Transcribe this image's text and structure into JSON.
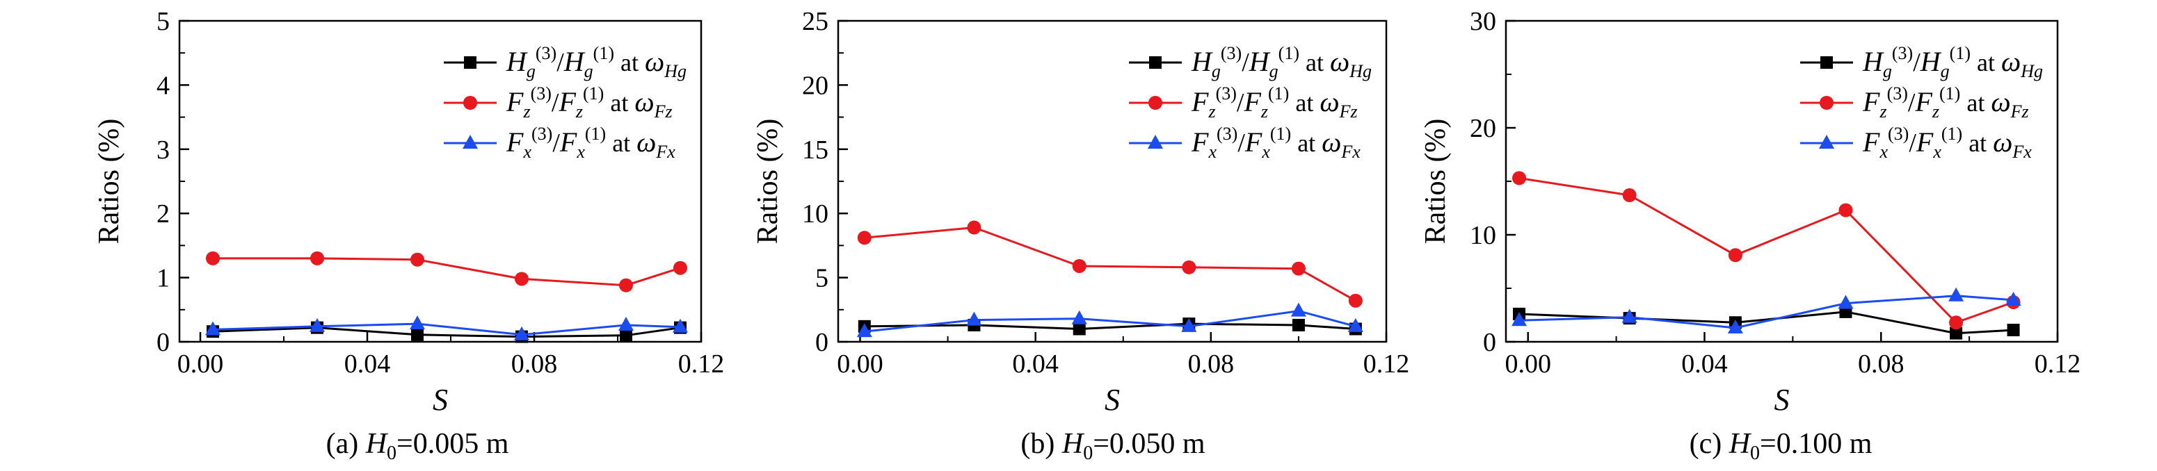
{
  "chart_data": [
    {
      "type": "line",
      "caption": {
        "prefix": "(a) ",
        "sym": "H",
        "sub": "0",
        "value": "=0.005 m"
      },
      "xlabel": "S",
      "ylabel": "Ratios (%)",
      "xlim": [
        -0.005,
        0.12
      ],
      "ylim": [
        0,
        5
      ],
      "xticks": [
        "0.00",
        "0.04",
        "0.08",
        "0.12"
      ],
      "yticks": [
        "0",
        "1",
        "2",
        "3",
        "4",
        "5"
      ],
      "series": [
        {
          "key": "hg",
          "sym": "H",
          "sub": "g",
          "sup3": "(3)",
          "sup1": "(1)",
          "at": " at ",
          "omega": "ω",
          "osub": "Hg",
          "color": "#000000",
          "marker": "square",
          "x": [
            0.003,
            0.028,
            0.052,
            0.077,
            0.102,
            0.115
          ],
          "y": [
            0.16,
            0.22,
            0.11,
            0.08,
            0.1,
            0.22
          ]
        },
        {
          "key": "fz",
          "sym": "F",
          "sub": "z",
          "sup3": "(3)",
          "sup1": "(1)",
          "at": " at ",
          "omega": "ω",
          "osub": "Fz",
          "color": "#e8191e",
          "marker": "circle",
          "x": [
            0.003,
            0.028,
            0.052,
            0.077,
            0.102,
            0.115
          ],
          "y": [
            1.3,
            1.3,
            1.28,
            0.98,
            0.88,
            1.15
          ]
        },
        {
          "key": "fx",
          "sym": "F",
          "sub": "x",
          "sup3": "(3)",
          "sup1": "(1)",
          "at": " at ",
          "omega": "ω",
          "osub": "Fx",
          "color": "#1b4cf2",
          "marker": "triangle",
          "x": [
            0.003,
            0.028,
            0.052,
            0.077,
            0.102,
            0.115
          ],
          "y": [
            0.19,
            0.24,
            0.28,
            0.11,
            0.26,
            0.23
          ]
        }
      ]
    },
    {
      "type": "line",
      "caption": {
        "prefix": "(b) ",
        "sym": "H",
        "sub": "0",
        "value": "=0.050 m"
      },
      "xlabel": "S",
      "ylabel": "Ratios (%)",
      "xlim": [
        -0.005,
        0.12
      ],
      "ylim": [
        0,
        25
      ],
      "xticks": [
        "0.00",
        "0.04",
        "0.08",
        "0.12"
      ],
      "yticks": [
        "0",
        "5",
        "10",
        "15",
        "20",
        "25"
      ],
      "series": [
        {
          "key": "hg",
          "sym": "H",
          "sub": "g",
          "sup3": "(3)",
          "sup1": "(1)",
          "at": " at ",
          "omega": "ω",
          "osub": "Hg",
          "color": "#000000",
          "marker": "square",
          "x": [
            0.001,
            0.026,
            0.05,
            0.075,
            0.1,
            0.113
          ],
          "y": [
            1.2,
            1.3,
            1.0,
            1.4,
            1.3,
            1.0
          ]
        },
        {
          "key": "fz",
          "sym": "F",
          "sub": "z",
          "sup3": "(3)",
          "sup1": "(1)",
          "at": " at ",
          "omega": "ω",
          "osub": "Fz",
          "color": "#e8191e",
          "marker": "circle",
          "x": [
            0.001,
            0.026,
            0.05,
            0.075,
            0.1,
            0.113
          ],
          "y": [
            8.1,
            8.9,
            5.9,
            5.8,
            5.7,
            3.2
          ]
        },
        {
          "key": "fx",
          "sym": "F",
          "sub": "x",
          "sup3": "(3)",
          "sup1": "(1)",
          "at": " at ",
          "omega": "ω",
          "osub": "Fx",
          "color": "#1b4cf2",
          "marker": "triangle",
          "x": [
            0.001,
            0.026,
            0.05,
            0.075,
            0.1,
            0.113
          ],
          "y": [
            0.8,
            1.7,
            1.8,
            1.2,
            2.4,
            1.2
          ]
        }
      ]
    },
    {
      "type": "line",
      "caption": {
        "prefix": "(c) ",
        "sym": "H",
        "sub": "0",
        "value": "=0.100 m"
      },
      "xlabel": "S",
      "ylabel": "Ratios (%)",
      "xlim": [
        -0.005,
        0.12
      ],
      "ylim": [
        0,
        30
      ],
      "xticks": [
        "0.00",
        "0.04",
        "0.08",
        "0.12"
      ],
      "yticks": [
        "0",
        "10",
        "20",
        "30"
      ],
      "series": [
        {
          "key": "hg",
          "sym": "H",
          "sub": "g",
          "sup3": "(3)",
          "sup1": "(1)",
          "at": " at ",
          "omega": "ω",
          "osub": "Hg",
          "color": "#000000",
          "marker": "square",
          "x": [
            -0.002,
            0.023,
            0.047,
            0.072,
            0.097,
            0.11
          ],
          "y": [
            2.6,
            2.2,
            1.8,
            2.8,
            0.8,
            1.1
          ]
        },
        {
          "key": "fz",
          "sym": "F",
          "sub": "z",
          "sup3": "(3)",
          "sup1": "(1)",
          "at": " at ",
          "omega": "ω",
          "osub": "Fz",
          "color": "#e8191e",
          "marker": "circle",
          "x": [
            -0.002,
            0.023,
            0.047,
            0.072,
            0.097,
            0.11
          ],
          "y": [
            15.3,
            13.7,
            8.1,
            12.3,
            1.8,
            3.7
          ]
        },
        {
          "key": "fx",
          "sym": "F",
          "sub": "x",
          "sup3": "(3)",
          "sup1": "(1)",
          "at": " at ",
          "omega": "ω",
          "osub": "Fx",
          "color": "#1b4cf2",
          "marker": "triangle",
          "x": [
            -0.002,
            0.023,
            0.047,
            0.072,
            0.097,
            0.11
          ],
          "y": [
            2.0,
            2.3,
            1.3,
            3.6,
            4.3,
            3.9
          ]
        }
      ]
    }
  ]
}
